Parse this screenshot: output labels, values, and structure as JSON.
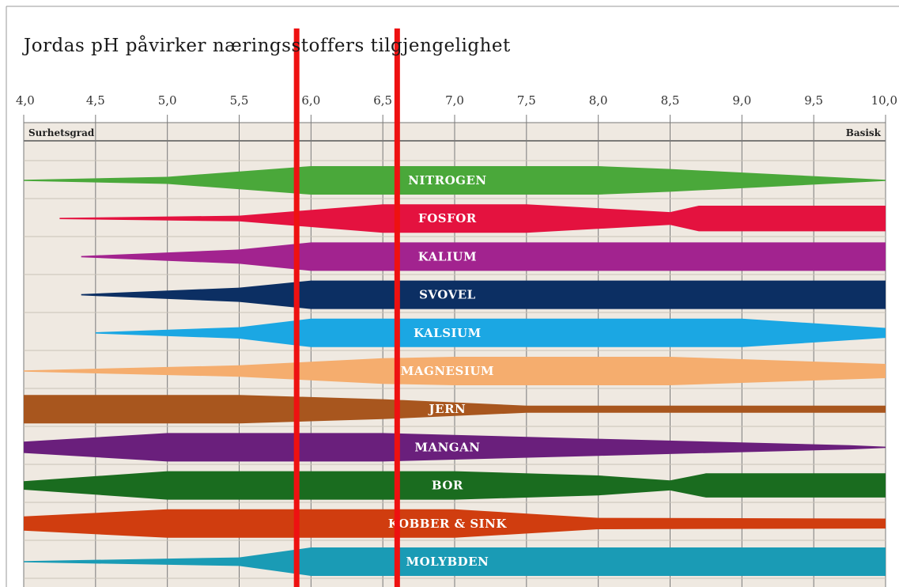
{
  "title": "Jordas pH påvirker næringsstoffers tilgjengelighet",
  "colors": {
    "background": "#efe9e1",
    "grid": "#7a7a7a",
    "marker": "#ee1111"
  },
  "chart_data": {
    "type": "band-availability",
    "title": "Jordas pH påvirker næringsstoffers tilgjengelighet",
    "x_ticks": [
      "4,0",
      "4,5",
      "5,0",
      "5,5",
      "6,0",
      "6,5",
      "7,0",
      "7,5",
      "8,0",
      "8,5",
      "9,0",
      "9,5",
      "10,0"
    ],
    "xlim": [
      4.0,
      10.0
    ],
    "left_label": "Surhetsgrad",
    "right_label": "Basisk",
    "highlight_range": [
      5.9,
      6.6
    ],
    "nutrients": [
      {
        "name": "NITROGEN",
        "color": "#4aa83a",
        "profile": [
          [
            4.0,
            0
          ],
          [
            5.0,
            0.25
          ],
          [
            6.0,
            1
          ],
          [
            8.0,
            1
          ],
          [
            8.5,
            0.8
          ],
          [
            10.0,
            0
          ]
        ]
      },
      {
        "name": "FOSFOR",
        "color": "#e4123f",
        "profile": [
          [
            4.25,
            0
          ],
          [
            5.5,
            0.2
          ],
          [
            6.5,
            1
          ],
          [
            7.5,
            1
          ],
          [
            8.5,
            0.45
          ],
          [
            8.7,
            0.9
          ],
          [
            10.0,
            0.9
          ]
        ]
      },
      {
        "name": "KALIUM",
        "color": "#a2238f",
        "profile": [
          [
            4.4,
            0
          ],
          [
            5.5,
            0.5
          ],
          [
            6.0,
            1
          ],
          [
            10.0,
            1
          ]
        ]
      },
      {
        "name": "SVOVEL",
        "color": "#0c2f63",
        "profile": [
          [
            4.4,
            0
          ],
          [
            5.5,
            0.5
          ],
          [
            6.0,
            1
          ],
          [
            10.0,
            1
          ]
        ]
      },
      {
        "name": "KALSIUM",
        "color": "#1ba7e3",
        "profile": [
          [
            4.5,
            0
          ],
          [
            5.5,
            0.4
          ],
          [
            6.0,
            1
          ],
          [
            9.0,
            1
          ],
          [
            10.0,
            0.35
          ]
        ]
      },
      {
        "name": "MAGNESIUM",
        "color": "#f5ad6e",
        "profile": [
          [
            4.0,
            0
          ],
          [
            5.5,
            0.4
          ],
          [
            6.5,
            0.9
          ],
          [
            7.0,
            1
          ],
          [
            8.5,
            1
          ],
          [
            10.0,
            0.5
          ]
        ]
      },
      {
        "name": "JERN",
        "color": "#a8561e",
        "profile": [
          [
            4.0,
            1
          ],
          [
            5.5,
            1
          ],
          [
            6.5,
            0.7
          ],
          [
            7.5,
            0.25
          ],
          [
            10.0,
            0.25
          ]
        ]
      },
      {
        "name": "MANGAN",
        "color": "#6a1f7c",
        "profile": [
          [
            4.0,
            0.4
          ],
          [
            5.0,
            1
          ],
          [
            6.5,
            1
          ],
          [
            8.0,
            0.6
          ],
          [
            9.75,
            0.15
          ],
          [
            10.0,
            0
          ]
        ]
      },
      {
        "name": "BOR",
        "color": "#1a6c1f",
        "profile": [
          [
            4.0,
            0.3
          ],
          [
            5.0,
            1
          ],
          [
            7.0,
            1
          ],
          [
            8.0,
            0.7
          ],
          [
            8.5,
            0.35
          ],
          [
            8.75,
            0.85
          ],
          [
            10.0,
            0.85
          ]
        ]
      },
      {
        "name": "KOBBER & SINK",
        "color": "#d03d0f",
        "profile": [
          [
            4.0,
            0.5
          ],
          [
            5.0,
            1
          ],
          [
            7.0,
            1
          ],
          [
            8.0,
            0.4
          ],
          [
            10.0,
            0.35
          ]
        ]
      },
      {
        "name": "MOLYBDEN",
        "color": "#1a9bb5",
        "profile": [
          [
            4.0,
            0
          ],
          [
            5.5,
            0.3
          ],
          [
            6.0,
            1
          ],
          [
            10.0,
            1
          ]
        ]
      }
    ]
  }
}
